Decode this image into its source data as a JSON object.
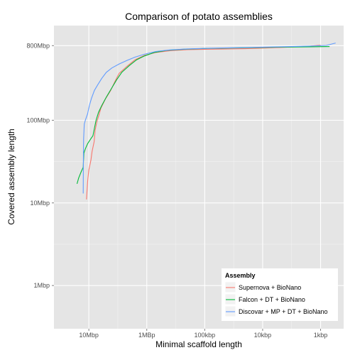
{
  "chart_data": {
    "type": "line",
    "title": "Comparison of potato assemblies",
    "xlabel": "Minimal scaffold length",
    "ylabel": "Covered assembly length",
    "x_axis_reversed": true,
    "x_scale": "log10",
    "y_scale": "log10",
    "xlim": [
      40000000,
      400
    ],
    "ylim": [
      300000,
      1400000000
    ],
    "x_ticks": [
      {
        "value": 10000000,
        "label": "10Mbp"
      },
      {
        "value": 1000000,
        "label": "1MBp"
      },
      {
        "value": 100000,
        "label": "100kbp"
      },
      {
        "value": 10000,
        "label": "10kbp"
      },
      {
        "value": 1000,
        "label": "1kbp"
      }
    ],
    "y_ticks": [
      {
        "value": 1000000,
        "label": "1Mbp"
      },
      {
        "value": 10000000,
        "label": "10Mbp"
      },
      {
        "value": 100000000,
        "label": "100Mbp"
      },
      {
        "value": 800000000,
        "label": "800Mbp"
      }
    ],
    "grid": true,
    "legend_position": "bottom-right",
    "legend_title": "Assembly",
    "series": [
      {
        "name": "Supernova + BioNano",
        "color": "#F8766D",
        "points": [
          [
            11000000,
            11000000
          ],
          [
            10500000,
            18000000
          ],
          [
            10000000,
            25000000
          ],
          [
            9200000,
            33000000
          ],
          [
            8800000,
            42000000
          ],
          [
            8100000,
            55000000
          ],
          [
            7800000,
            75000000
          ],
          [
            7300000,
            95000000
          ],
          [
            6700000,
            115000000
          ],
          [
            6200000,
            140000000
          ],
          [
            5200000,
            180000000
          ],
          [
            4200000,
            230000000
          ],
          [
            3500000,
            300000000
          ],
          [
            3000000,
            370000000
          ],
          [
            2200000,
            450000000
          ],
          [
            1600000,
            540000000
          ],
          [
            1100000,
            610000000
          ],
          [
            700000,
            660000000
          ],
          [
            400000,
            695000000
          ],
          [
            200000,
            715000000
          ],
          [
            80000,
            725000000
          ],
          [
            20000,
            735000000
          ],
          [
            5000,
            760000000
          ],
          [
            1500,
            790000000
          ],
          [
            1000,
            810000000
          ]
        ]
      },
      {
        "name": "Falcon + DT + BioNano",
        "color": "#00BA38",
        "points": [
          [
            16000000,
            17000000
          ],
          [
            15000000,
            20000000
          ],
          [
            13500000,
            24000000
          ],
          [
            12500000,
            27000000
          ],
          [
            12200000,
            40000000
          ],
          [
            11500000,
            45000000
          ],
          [
            10500000,
            52000000
          ],
          [
            9500000,
            58000000
          ],
          [
            8500000,
            65000000
          ],
          [
            8000000,
            80000000
          ],
          [
            7500000,
            100000000
          ],
          [
            6800000,
            125000000
          ],
          [
            6000000,
            150000000
          ],
          [
            5000000,
            190000000
          ],
          [
            4100000,
            240000000
          ],
          [
            3300000,
            310000000
          ],
          [
            2700000,
            380000000
          ],
          [
            2000000,
            460000000
          ],
          [
            1500000,
            540000000
          ],
          [
            1100000,
            600000000
          ],
          [
            750000,
            660000000
          ],
          [
            450000,
            700000000
          ],
          [
            220000,
            725000000
          ],
          [
            90000,
            740000000
          ],
          [
            25000,
            750000000
          ],
          [
            6000,
            765000000
          ],
          [
            1500,
            775000000
          ],
          [
            700,
            780000000
          ]
        ]
      },
      {
        "name": "Discovar + MP + DT + BioNano",
        "color": "#619CFF",
        "points": [
          [
            12500000,
            13000000
          ],
          [
            12400000,
            40000000
          ],
          [
            12300000,
            60000000
          ],
          [
            12000000,
            90000000
          ],
          [
            11500000,
            100000000
          ],
          [
            10500000,
            120000000
          ],
          [
            9800000,
            150000000
          ],
          [
            9000000,
            185000000
          ],
          [
            8000000,
            230000000
          ],
          [
            7000000,
            270000000
          ],
          [
            6000000,
            320000000
          ],
          [
            5000000,
            380000000
          ],
          [
            4000000,
            430000000
          ],
          [
            3000000,
            480000000
          ],
          [
            2200000,
            530000000
          ],
          [
            1600000,
            580000000
          ],
          [
            1100000,
            630000000
          ],
          [
            700000,
            680000000
          ],
          [
            400000,
            710000000
          ],
          [
            200000,
            730000000
          ],
          [
            80000,
            745000000
          ],
          [
            20000,
            760000000
          ],
          [
            5000,
            775000000
          ],
          [
            1500,
            790000000
          ],
          [
            800,
            805000000
          ],
          [
            550,
            860000000
          ]
        ]
      }
    ]
  }
}
